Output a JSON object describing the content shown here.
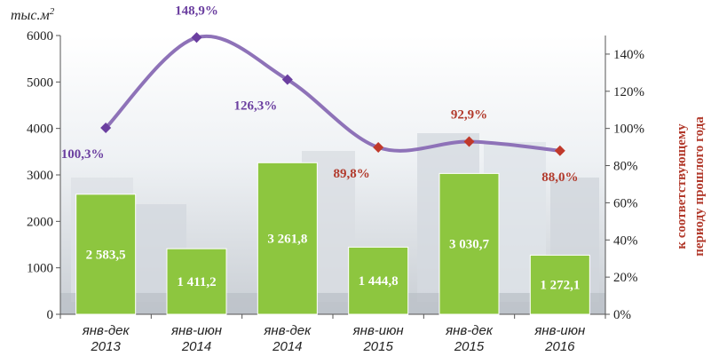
{
  "chart_data": {
    "type": "bar+line",
    "y_unit": "тыс.м",
    "y_unit_sup": "2",
    "y2label": [
      "к соответствующему",
      "периоду прошлого года"
    ],
    "ylim": [
      0,
      6000
    ],
    "y_ticks": [
      "0",
      "1000",
      "2000",
      "3000",
      "4000",
      "5000",
      "6000"
    ],
    "y2lim": [
      0,
      150
    ],
    "y2_ticks": [
      "0%",
      "20%",
      "40%",
      "60%",
      "80%",
      "100%",
      "120%",
      "140%"
    ],
    "categories": [
      [
        "янв-дек",
        "2013"
      ],
      [
        "янв-июн",
        "2014"
      ],
      [
        "янв-дек",
        "2014"
      ],
      [
        "янв-июн",
        "2015"
      ],
      [
        "янв-дек",
        "2015"
      ],
      [
        "янв-июн",
        "2016"
      ]
    ],
    "bars": {
      "values": [
        2583.5,
        1411.2,
        3261.8,
        1444.8,
        3030.7,
        1272.1
      ],
      "labels": [
        "2 583,5",
        "1 411,2",
        "3 261,8",
        "1 444,8",
        "3 030,7",
        "1 272,1"
      ],
      "color": "#8dc63f"
    },
    "line": {
      "values": [
        100.3,
        148.9,
        126.3,
        89.8,
        92.9,
        88.0
      ],
      "labels": [
        "100,3%",
        "148,9%",
        "126,3%",
        "89,8%",
        "92,9%",
        "88,0%"
      ],
      "line_color": "#8e72b8",
      "marker_colors": [
        "#6b3fa0",
        "#6b3fa0",
        "#6b3fa0",
        "#c0392b",
        "#c0392b",
        "#c0392b"
      ],
      "label_colors": [
        "#6b3fa0",
        "#6b3fa0",
        "#6b3fa0",
        "#b23a2c",
        "#b23a2c",
        "#b23a2c"
      ]
    },
    "grid": false
  }
}
